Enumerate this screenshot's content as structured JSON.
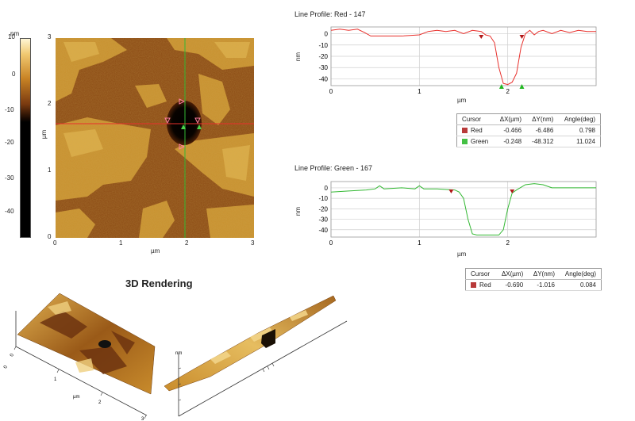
{
  "afm_image": {
    "colorbar_unit": "nm",
    "colorbar_ticks": [
      "10",
      "0",
      "-10",
      "-20",
      "-30",
      "-40"
    ],
    "y_ticks": [
      "3",
      "2",
      "1",
      "0"
    ],
    "x_ticks": [
      "0",
      "1",
      "2",
      "3"
    ],
    "xlabel": "µm",
    "ylabel": "µm"
  },
  "profile_red": {
    "title": "Line Profile: Red  -  147",
    "ylabel": "nm",
    "xlabel": "µm",
    "color": "#e8302c"
  },
  "profile_green": {
    "title": "Line Profile: Green  -  167",
    "ylabel": "nm",
    "xlabel": "µm",
    "color": "#33b833"
  },
  "table_red": {
    "headers": [
      "Cursor",
      "ΔX(µm)",
      "ΔY(nm)",
      "Angle(deg)"
    ],
    "rows": [
      {
        "name": "Red",
        "color": "#b83a3a",
        "dx": "-0.466",
        "dy": "-6.486",
        "angle": "0.798"
      },
      {
        "name": "Green",
        "color": "#44c044",
        "dx": "-0.248",
        "dy": "-48.312",
        "angle": "11.024"
      }
    ]
  },
  "table_green": {
    "headers": [
      "Cursor",
      "ΔX(µm)",
      "ΔY(nm)",
      "Angle(deg)"
    ],
    "rows": [
      {
        "name": "Red",
        "color": "#b83a3a",
        "dx": "-0.690",
        "dy": "-1.016",
        "angle": "0.084"
      }
    ]
  },
  "rendering": {
    "title": "3D Rendering",
    "left_axis_ticks": [
      "0",
      "1",
      "2",
      "3"
    ],
    "left_axis_label": "µm",
    "left_side_label": "0",
    "right_z_label": "nm"
  },
  "chart_data": [
    {
      "type": "line",
      "name": "profile_red",
      "x": [
        0,
        0.1,
        0.2,
        0.3,
        0.38,
        0.45,
        0.6,
        0.8,
        1.0,
        1.1,
        1.2,
        1.3,
        1.4,
        1.5,
        1.6,
        1.7,
        1.75,
        1.8,
        1.85,
        1.9,
        1.95,
        2.0,
        2.05,
        2.1,
        2.15,
        2.2,
        2.25,
        2.3,
        2.35,
        2.4,
        2.5,
        2.6,
        2.7,
        2.8,
        2.9,
        3.0
      ],
      "y": [
        3,
        4,
        3,
        4,
        1,
        -2,
        -2,
        -2,
        -1,
        2,
        3,
        2,
        3,
        0,
        3,
        2,
        -1,
        -2,
        -8,
        -30,
        -44,
        -45,
        -43,
        -35,
        -12,
        0,
        3,
        -1,
        2,
        3,
        0,
        3,
        1,
        3,
        2,
        2
      ],
      "xlim": [
        0,
        3
      ],
      "ylim": [
        -46,
        6
      ],
      "x_ticks": [
        0,
        1,
        2
      ],
      "y_ticks": [
        0,
        -10,
        -20,
        -30,
        -40
      ],
      "cursors": [
        {
          "color": "red",
          "x": 1.7,
          "side": "top"
        },
        {
          "color": "red",
          "x": 2.16,
          "side": "top"
        },
        {
          "color": "green",
          "x": 1.93,
          "side": "bottom"
        },
        {
          "color": "green",
          "x": 2.16,
          "side": "bottom"
        }
      ]
    },
    {
      "type": "line",
      "name": "profile_green",
      "x": [
        0,
        0.2,
        0.4,
        0.5,
        0.55,
        0.6,
        0.8,
        0.95,
        1.0,
        1.05,
        1.2,
        1.4,
        1.45,
        1.5,
        1.55,
        1.6,
        1.65,
        1.7,
        1.8,
        1.9,
        1.95,
        2.0,
        2.05,
        2.1,
        2.2,
        2.3,
        2.4,
        2.5,
        2.7,
        3.0
      ],
      "y": [
        -4,
        -3,
        -2,
        -1,
        2,
        -1,
        0,
        -1,
        2,
        -1,
        -1,
        -2,
        -4,
        -10,
        -30,
        -44,
        -45,
        -45,
        -45,
        -45,
        -40,
        -20,
        -5,
        -2,
        3,
        4,
        3,
        0,
        0,
        0
      ],
      "xlim": [
        0,
        3
      ],
      "ylim": [
        -47,
        6
      ],
      "x_ticks": [
        0,
        1,
        2
      ],
      "y_ticks": [
        0,
        -10,
        -20,
        -30,
        -40
      ],
      "cursors": [
        {
          "color": "red",
          "x": 1.36,
          "side": "top"
        },
        {
          "color": "red",
          "x": 2.05,
          "side": "top"
        }
      ]
    }
  ]
}
